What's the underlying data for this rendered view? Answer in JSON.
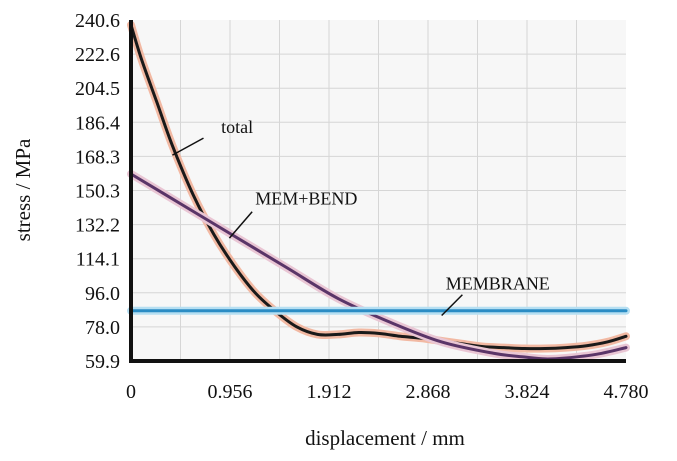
{
  "chart_data": {
    "type": "line",
    "xlabel": "displacement / mm",
    "ylabel": "stress / MPa",
    "xlim": [
      0,
      4.78
    ],
    "ylim": [
      59.9,
      240.6
    ],
    "x_ticks": [
      "0",
      "0.956",
      "1.912",
      "2.868",
      "3.824",
      "4.780"
    ],
    "y_ticks": [
      "240.6",
      "222.6",
      "204.5",
      "186.4",
      "168.3",
      "150.3",
      "132.2",
      "114.1",
      "96.0",
      "78.0",
      "59.9"
    ],
    "grid": true,
    "series": [
      {
        "name": "total",
        "color": "#1a1a1a",
        "halo": "#f2b9a3",
        "x": [
          0,
          0.1,
          0.25,
          0.4,
          0.6,
          0.8,
          1.0,
          1.2,
          1.4,
          1.6,
          1.8,
          2.0,
          2.2,
          2.4,
          2.6,
          2.8,
          3.0,
          3.2,
          3.4,
          3.6,
          3.8,
          4.0,
          4.2,
          4.4,
          4.6,
          4.78
        ],
        "y": [
          238,
          220,
          197,
          174,
          148,
          127,
          110,
          96,
          86,
          78,
          74,
          74,
          75,
          74.5,
          73,
          72,
          70.5,
          69,
          67.5,
          67,
          66.5,
          66.5,
          67,
          68,
          70,
          73
        ]
      },
      {
        "name": "MEM+BEND",
        "color": "#5a3568",
        "halo": "#e9c6d4",
        "x": [
          0,
          0.5,
          1.0,
          1.5,
          2.0,
          2.5,
          3.0,
          3.5,
          3.8,
          4.0,
          4.2,
          4.5,
          4.78
        ],
        "y": [
          159,
          142.5,
          126,
          109.5,
          93,
          80.5,
          70,
          64,
          62,
          61,
          61.5,
          63.5,
          67
        ]
      },
      {
        "name": "MEMBRANE",
        "color": "#2a8cc4",
        "halo": "#b6dff2",
        "x": [
          0,
          4.78
        ],
        "y": [
          86.5,
          86.5
        ]
      }
    ],
    "annotations": [
      {
        "text": "total",
        "x": 0.8,
        "y": 184
      },
      {
        "text": "MEM+BEND",
        "x": 1.17,
        "y": 146
      },
      {
        "text": "MEMBRANE",
        "x": 2.9,
        "y": 101
      }
    ]
  }
}
